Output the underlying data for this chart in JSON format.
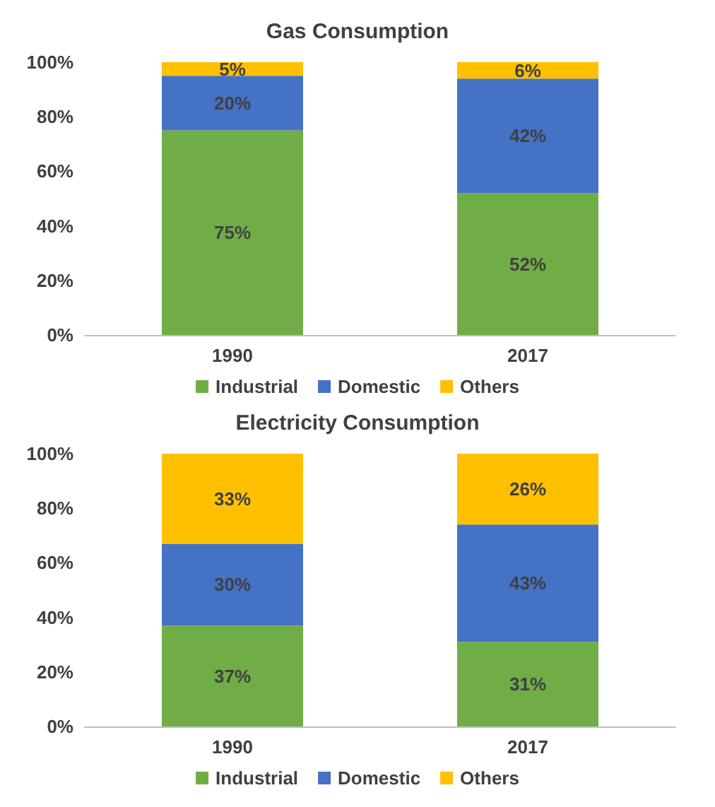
{
  "chart_data": [
    {
      "type": "bar",
      "title": "Gas Consumption",
      "categories": [
        "1990",
        "2017"
      ],
      "stacked": true,
      "legend": "bottom",
      "grid": false,
      "ylim": [
        0,
        100
      ],
      "yticks": [
        {
          "value": 0,
          "label": "0%"
        },
        {
          "value": 20,
          "label": "20%"
        },
        {
          "value": 40,
          "label": "40%"
        },
        {
          "value": 60,
          "label": "60%"
        },
        {
          "value": 80,
          "label": "80%"
        },
        {
          "value": 100,
          "label": "100%"
        }
      ],
      "series": [
        {
          "name": "Industrial",
          "color": "#70ad47",
          "values": [
            75,
            52
          ],
          "value_labels": [
            "75%",
            "52%"
          ]
        },
        {
          "name": "Domestic",
          "color": "#4472c4",
          "values": [
            20,
            42
          ],
          "value_labels": [
            "20%",
            "42%"
          ]
        },
        {
          "name": "Others",
          "color": "#ffc000",
          "values": [
            5,
            6
          ],
          "value_labels": [
            "5%",
            "6%"
          ]
        }
      ]
    },
    {
      "type": "bar",
      "title": "Electricity Consumption",
      "categories": [
        "1990",
        "2017"
      ],
      "stacked": true,
      "legend": "bottom",
      "grid": false,
      "ylim": [
        0,
        100
      ],
      "yticks": [
        {
          "value": 0,
          "label": "0%"
        },
        {
          "value": 20,
          "label": "20%"
        },
        {
          "value": 40,
          "label": "40%"
        },
        {
          "value": 60,
          "label": "60%"
        },
        {
          "value": 80,
          "label": "80%"
        },
        {
          "value": 100,
          "label": "100%"
        }
      ],
      "series": [
        {
          "name": "Industrial",
          "color": "#70ad47",
          "values": [
            37,
            31
          ],
          "value_labels": [
            "37%",
            "31%"
          ]
        },
        {
          "name": "Domestic",
          "color": "#4472c4",
          "values": [
            30,
            43
          ],
          "value_labels": [
            "30%",
            "43%"
          ]
        },
        {
          "name": "Others",
          "color": "#ffc000",
          "values": [
            33,
            26
          ],
          "value_labels": [
            "33%",
            "26%"
          ]
        }
      ]
    }
  ]
}
